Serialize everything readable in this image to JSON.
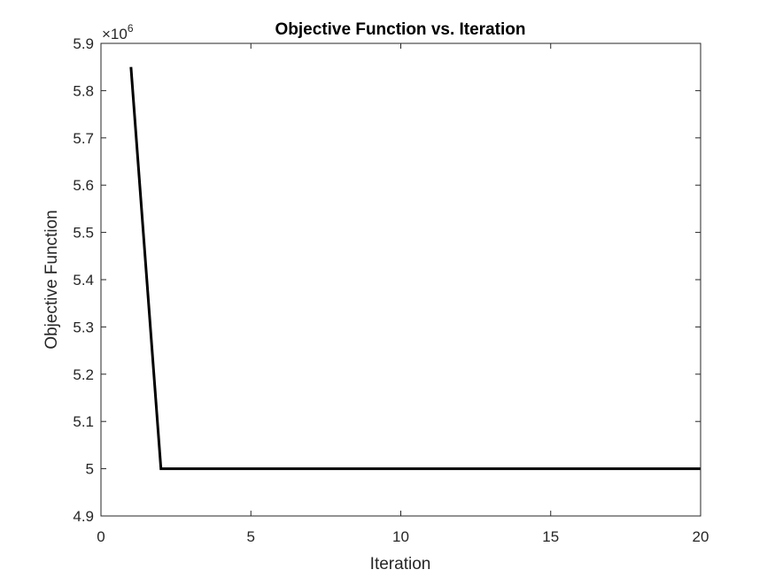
{
  "chart_data": {
    "type": "line",
    "title": "Objective Function vs. Iteration",
    "xlabel": "Iteration",
    "ylabel": "Objective Function",
    "xlim": [
      0,
      20
    ],
    "ylim": [
      4900000,
      5900000
    ],
    "x_ticks": [
      0,
      5,
      10,
      15,
      20
    ],
    "y_ticks": [
      4.9,
      5,
      5.1,
      5.2,
      5.3,
      5.4,
      5.5,
      5.6,
      5.7,
      5.8,
      5.9
    ],
    "x_tick_labels": [
      "0",
      "5",
      "10",
      "15",
      "20"
    ],
    "y_tick_labels": [
      "4.9",
      "5",
      "5.1",
      "5.2",
      "5.3",
      "5.4",
      "5.5",
      "5.6",
      "5.7",
      "5.8",
      "5.9"
    ],
    "y_exponent": {
      "base": "×10",
      "power": "6"
    },
    "grid": false,
    "line_color": "#000000",
    "series": [
      {
        "x": [
          1,
          2,
          3,
          4,
          5,
          6,
          7,
          8,
          9,
          10,
          11,
          12,
          13,
          14,
          15,
          16,
          17,
          18,
          19,
          20
        ],
        "y": [
          5850000,
          5000000,
          5000000,
          5000000,
          5000000,
          5000000,
          5000000,
          5000000,
          5000000,
          5000000,
          5000000,
          5000000,
          5000000,
          5000000,
          5000000,
          5000000,
          5000000,
          5000000,
          5000000,
          5000000
        ]
      }
    ]
  }
}
